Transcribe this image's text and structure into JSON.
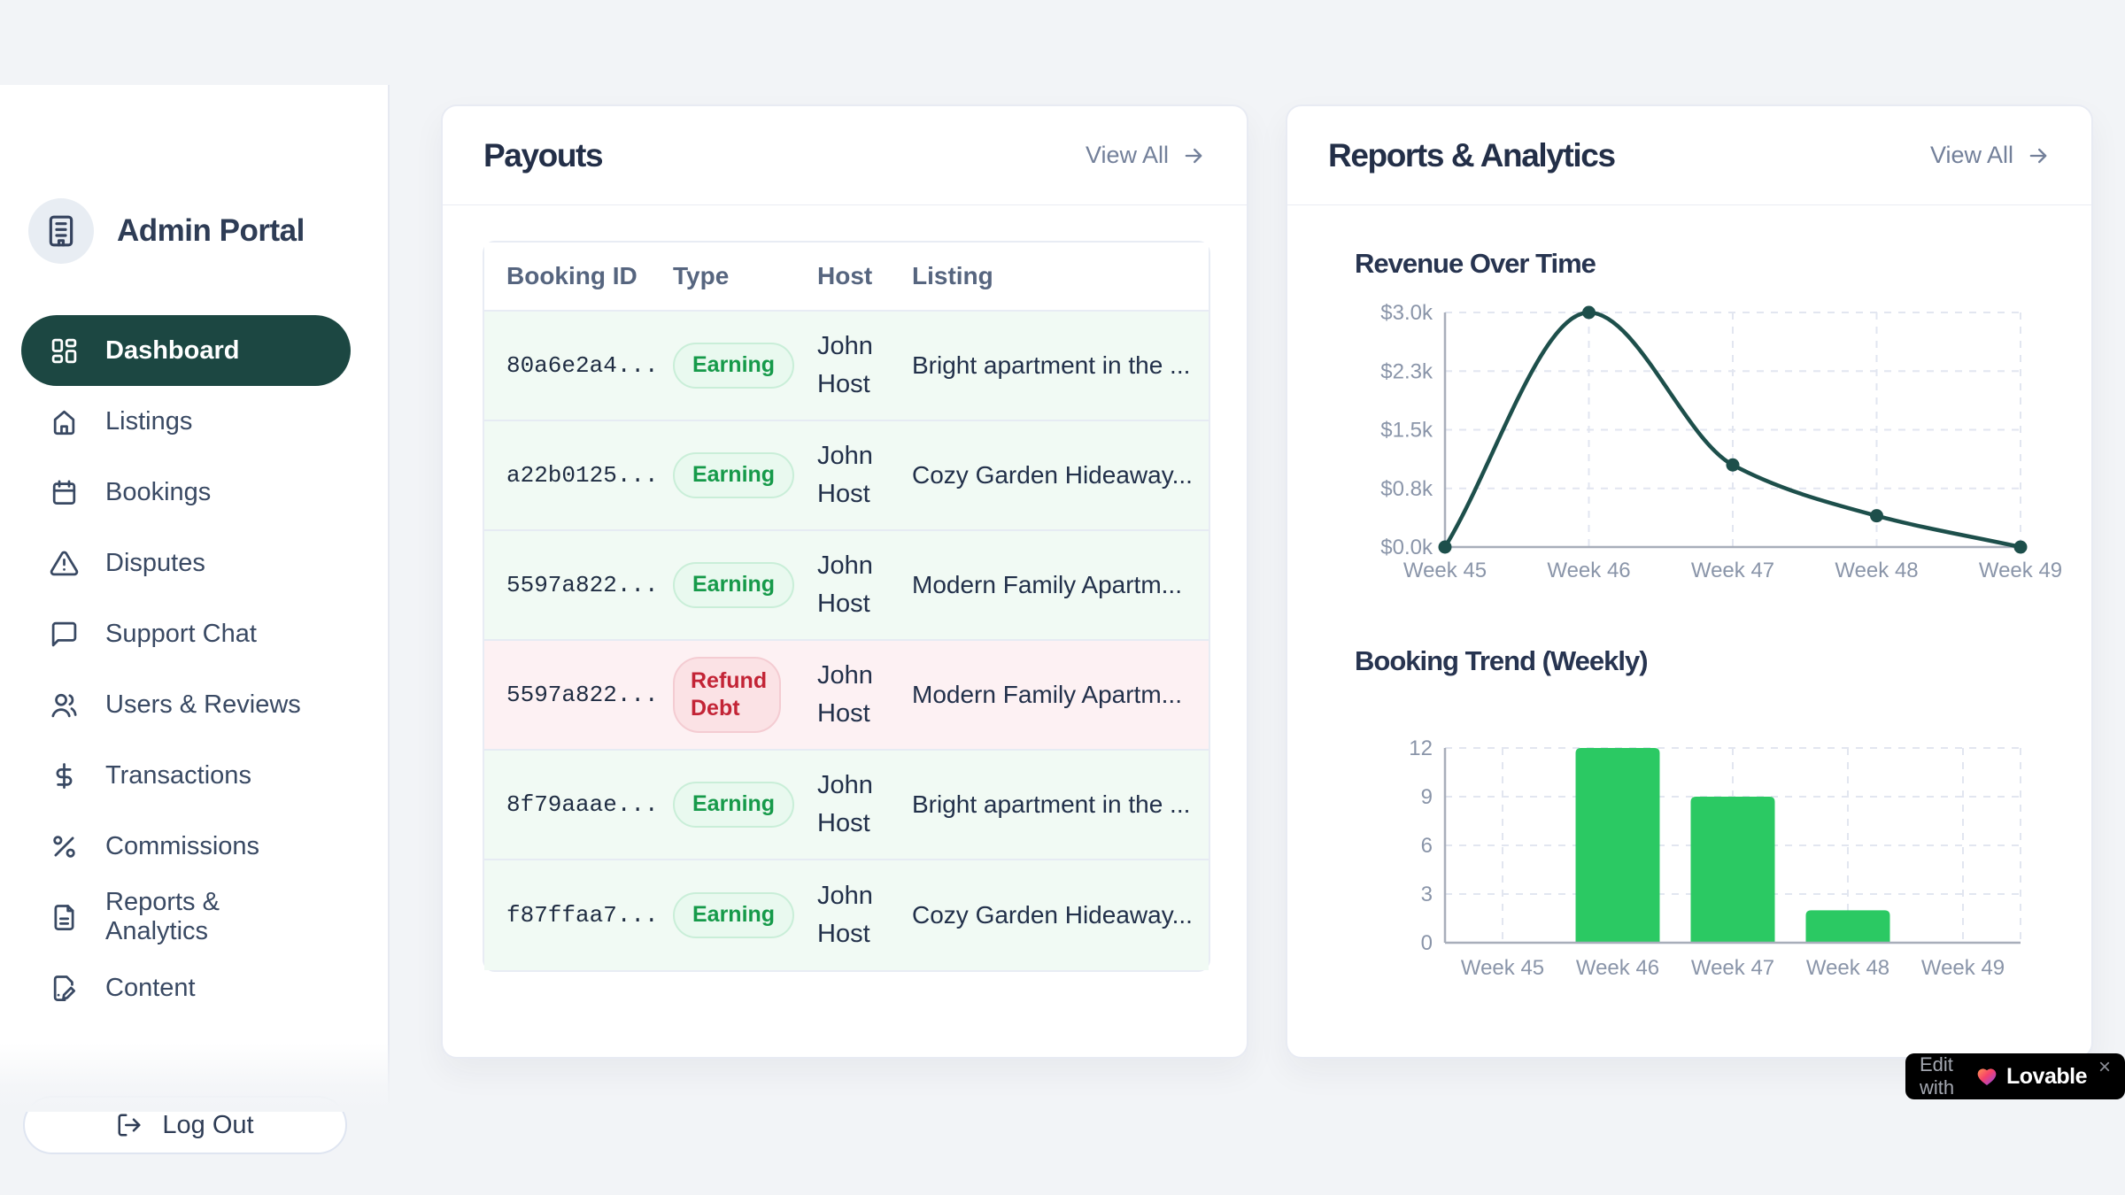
{
  "colors": {
    "background": "#f2f4f7",
    "accent_teal": "#1c4742",
    "line_teal": "#1d4f4b",
    "bar_green": "#2bc963",
    "earning_text": "#169a4a",
    "earning_bg": "#e9f9ef",
    "refund_text": "#c32436",
    "refund_bg": "#fbe2e5",
    "row_earning_bg": "#f1faf4",
    "row_refund_bg": "#fdf1f3"
  },
  "sidebar": {
    "brand": "Admin Portal",
    "brand_icon": "building-icon",
    "items": [
      {
        "label": "Dashboard",
        "icon": "layout-dashboard-icon",
        "active": true
      },
      {
        "label": "Listings",
        "icon": "house-icon",
        "active": false
      },
      {
        "label": "Bookings",
        "icon": "calendar-icon",
        "active": false
      },
      {
        "label": "Disputes",
        "icon": "alert-triangle-icon",
        "active": false
      },
      {
        "label": "Support Chat",
        "icon": "message-square-icon",
        "active": false
      },
      {
        "label": "Users & Reviews",
        "icon": "users-icon",
        "active": false
      },
      {
        "label": "Transactions",
        "icon": "dollar-icon",
        "active": false
      },
      {
        "label": "Commissions",
        "icon": "percent-icon",
        "active": false
      },
      {
        "label": "Reports & Analytics",
        "icon": "file-text-icon",
        "active": false
      },
      {
        "label": "Content",
        "icon": "file-pen-icon",
        "active": false
      }
    ],
    "logout_label": "Log Out",
    "logout_icon": "log-out-icon"
  },
  "payouts": {
    "title": "Payouts",
    "view_all": "View All",
    "table": {
      "columns": [
        "Booking ID",
        "Type",
        "Host",
        "Listing"
      ],
      "rows": [
        {
          "booking_id": "80a6e2a4...",
          "type": "Earning",
          "variant": "earning",
          "host": "John Host",
          "listing": "Bright apartment in the ..."
        },
        {
          "booking_id": "a22b0125...",
          "type": "Earning",
          "variant": "earning",
          "host": "John Host",
          "listing": "Cozy Garden Hideaway..."
        },
        {
          "booking_id": "5597a822...",
          "type": "Earning",
          "variant": "earning",
          "host": "John Host",
          "listing": "Modern Family Apartm..."
        },
        {
          "booking_id": "5597a822...",
          "type": "Refund Debt",
          "variant": "refund",
          "host": "John Host",
          "listing": "Modern Family Apartm..."
        },
        {
          "booking_id": "8f79aaae...",
          "type": "Earning",
          "variant": "earning",
          "host": "John Host",
          "listing": "Bright apartment in the ..."
        },
        {
          "booking_id": "f87ffaa7...",
          "type": "Earning",
          "variant": "earning",
          "host": "John Host",
          "listing": "Cozy Garden Hideaway..."
        }
      ]
    }
  },
  "reports": {
    "title": "Reports & Analytics",
    "view_all": "View All"
  },
  "chart_data": [
    {
      "type": "line",
      "title": "Revenue Over Time",
      "x": [
        "Week 45",
        "Week 46",
        "Week 47",
        "Week 48",
        "Week 49"
      ],
      "values": [
        0,
        3000,
        1050,
        400,
        0
      ],
      "y_ticks": [
        "$0.0k",
        "$0.8k",
        "$1.5k",
        "$2.3k",
        "$3.0k"
      ],
      "ylim": [
        0,
        3000
      ],
      "xlabel": "",
      "ylabel": "",
      "grid": "dashed",
      "legend": false,
      "color": "#1d4f4b"
    },
    {
      "type": "bar",
      "title": "Booking Trend (Weekly)",
      "categories": [
        "Week 45",
        "Week 46",
        "Week 47",
        "Week 48",
        "Week 49"
      ],
      "values": [
        0,
        12,
        9,
        2,
        0
      ],
      "y_ticks": [
        0,
        3,
        6,
        9,
        12
      ],
      "ylim": [
        0,
        12
      ],
      "xlabel": "",
      "ylabel": "",
      "grid": "dashed",
      "legend": false,
      "color": "#2bc963"
    }
  ],
  "lovable_badge": {
    "prefix": "Edit with",
    "brand": "Lovable",
    "heart_icon": "heart-icon",
    "close": "×"
  }
}
